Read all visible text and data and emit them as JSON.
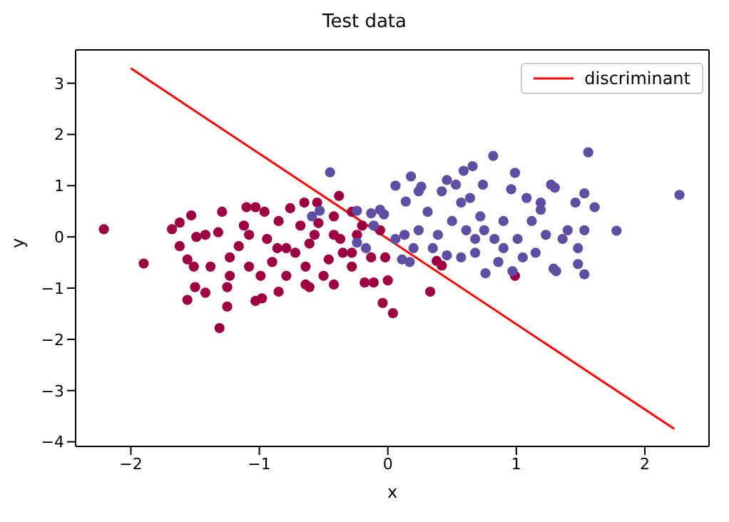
{
  "chart_data": {
    "type": "scatter",
    "title": "Test data",
    "xlabel": "x",
    "ylabel": "y",
    "xlim": [
      -2.43,
      2.5
    ],
    "ylim": [
      -4.09,
      3.65
    ],
    "xticks": [
      {
        "value": -2,
        "label": "−2"
      },
      {
        "value": -1,
        "label": "−1"
      },
      0,
      1,
      2
    ],
    "yticks": [
      {
        "value": -4,
        "label": "−4"
      },
      {
        "value": -3,
        "label": "−3"
      },
      {
        "value": -2,
        "label": "−2"
      },
      {
        "value": -1,
        "label": "−1"
      },
      0,
      1,
      2,
      3
    ],
    "grid": false,
    "legend": "top right",
    "marker": "circle",
    "series": [
      {
        "color": "#9e0142",
        "x": [
          -2.21,
          -1.9,
          -1.68,
          -1.62,
          -1.53,
          -1.62,
          -1.56,
          -1.51,
          -1.49,
          -1.42,
          -1.56,
          -1.5,
          -1.42,
          -1.38,
          -1.32,
          -1.29,
          -1.25,
          -1.25,
          -1.31,
          -1.23,
          -1.16,
          -1.1,
          -1.03,
          -0.96,
          -1.12,
          -1.08,
          -1.03,
          -0.98,
          -0.99,
          -0.9,
          -0.85,
          -0.85,
          -0.79,
          -0.76,
          -0.68,
          -0.65,
          -0.55,
          -0.54,
          -0.61,
          -0.61,
          -0.5,
          -0.46,
          -0.42,
          -0.38,
          -0.37,
          -0.28,
          -0.28,
          -0.18,
          -0.11,
          -0.13,
          -0.04,
          0.04,
          0,
          -0.06,
          -0.02,
          0.33,
          0.38,
          0.42,
          0.99,
          -0.72,
          -0.42,
          -0.94,
          -0.79,
          -0.64,
          -0.57,
          -0.35,
          -0.24,
          -0.42,
          -1.23,
          -1.08,
          -0.64,
          -0.86,
          -0.28,
          -0.2
        ],
        "values": [
          0.15,
          -0.52,
          0.15,
          0.28,
          0.42,
          -0.18,
          -0.44,
          -0.58,
          0,
          0.04,
          -1.23,
          -0.98,
          -1.09,
          -0.58,
          0.09,
          0.49,
          -0.98,
          -1.36,
          -1.78,
          -0.4,
          -0.18,
          0.58,
          0.58,
          0.49,
          0.22,
          -0.58,
          -1.25,
          -1.2,
          -0.76,
          -0.49,
          0.31,
          -1.07,
          -0.76,
          0.56,
          0.22,
          0.67,
          0.67,
          0.27,
          -0.13,
          -0.98,
          -0.76,
          -0.44,
          0.4,
          0.8,
          -0.04,
          0.49,
          -0.31,
          -0.89,
          -0.89,
          -0.4,
          -1.29,
          -1.49,
          -0.85,
          0.13,
          -0.4,
          -1.07,
          -0.47,
          -0.56,
          -0.76,
          -0.31,
          -0.93,
          -0.04,
          -0.22,
          -0.58,
          0.04,
          -0.31,
          0.04,
          0.04,
          -0.76,
          0.04,
          -0.93,
          -0.22,
          -0.58,
          0.22
        ]
      },
      {
        "color": "#5e4fa2",
        "x": [
          2.27,
          1.56,
          0.82,
          1.78,
          1.53,
          1.48,
          1.61,
          1.53,
          1.53,
          1.48,
          1.46,
          1.4,
          1.29,
          1.31,
          1.27,
          1.3,
          1.19,
          1.15,
          1.05,
          0.99,
          0.97,
          0.96,
          1.08,
          0.76,
          0.86,
          0.74,
          0.66,
          0.59,
          0.53,
          0.46,
          0.42,
          0.18,
          0.26,
          0.24,
          0.06,
          0.14,
          0.11,
          0.17,
          0.46,
          0.57,
          0.68,
          0.72,
          0.75,
          0.9,
          0.83,
          0.61,
          0.5,
          0.39,
          0.31,
          0.24,
          0.13,
          0.06,
          0.57,
          0.68,
          1.01,
          1.12,
          0.9,
          0.35,
          0.64,
          -0.45,
          -0.59,
          -0.53,
          -0.24,
          -0.13,
          -0.06,
          -0.03,
          -0.24,
          -0.17,
          -0.11,
          1.36,
          1.23,
          1.19,
          0.2
        ],
        "values": [
          0.82,
          1.65,
          1.58,
          0.12,
          -0.73,
          -0.53,
          0.58,
          0.85,
          0.13,
          -0.22,
          0.67,
          0.13,
          -0.62,
          -0.67,
          1.02,
          0.96,
          0.53,
          -0.31,
          -0.4,
          1.25,
          -0.67,
          0.93,
          0.76,
          -0.71,
          -0.49,
          1.02,
          1.38,
          1.29,
          1.02,
          1.11,
          0.89,
          1.18,
          0.98,
          0.89,
          1,
          0.69,
          -0.44,
          -0.49,
          -0.36,
          -0.4,
          -0.31,
          0.4,
          0.13,
          0.31,
          -0.04,
          0.13,
          0.31,
          0.04,
          0.49,
          0.13,
          0.04,
          -0.04,
          0.67,
          -0.04,
          -0.04,
          0.31,
          -0.22,
          -0.22,
          0.76,
          1.26,
          0.4,
          0.51,
          0.51,
          0.46,
          0.53,
          0.44,
          -0.11,
          -0.22,
          0.22,
          -0.04,
          0.04,
          0.67,
          -0.22
        ]
      },
      {
        "type": "line",
        "name": "discriminant",
        "marker": "none",
        "color": "#ff0000",
        "x": [
          -2,
          2.23
        ],
        "values": [
          3.29,
          -3.75
        ]
      }
    ]
  }
}
